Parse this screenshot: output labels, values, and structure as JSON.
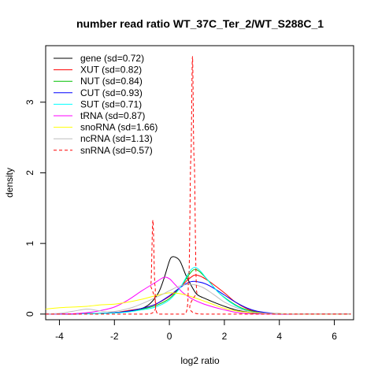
{
  "chart_data": {
    "type": "line",
    "title": "number read ratio WT_37C_Ter_2/WT_S288C_1",
    "xlabel": "log2 ratio",
    "ylabel": "density",
    "xlim": [
      -4.5,
      6.7
    ],
    "ylim": [
      -0.08,
      3.8
    ],
    "xticks": [
      "-4",
      "-2",
      "0",
      "2",
      "4",
      "6"
    ],
    "yticks": [
      "0",
      "1",
      "2",
      "3"
    ],
    "grid": false,
    "legend_position": "top-left",
    "series": [
      {
        "name": "gene (sd=0.72)",
        "color": "#000000",
        "dash": false,
        "x": [
          -4.5,
          -3,
          -2,
          -1.5,
          -1,
          -0.7,
          -0.4,
          -0.2,
          0,
          0.1,
          0.25,
          0.4,
          0.6,
          0.8,
          1,
          1.3,
          1.6,
          2,
          2.4,
          2.8,
          3.2,
          4,
          5,
          6.6
        ],
        "y": [
          0,
          0.005,
          0.02,
          0.04,
          0.08,
          0.15,
          0.3,
          0.5,
          0.75,
          0.81,
          0.8,
          0.74,
          0.55,
          0.4,
          0.28,
          0.22,
          0.17,
          0.11,
          0.06,
          0.03,
          0.01,
          0,
          0,
          0
        ]
      },
      {
        "name": "XUT (sd=0.82)",
        "color": "#ff0000",
        "dash": false,
        "x": [
          -4.5,
          -3,
          -2,
          -1.5,
          -1,
          -0.5,
          0,
          0.3,
          0.6,
          0.9,
          1.1,
          1.3,
          1.6,
          2,
          2.4,
          2.8,
          3.2,
          4,
          5,
          6.6
        ],
        "y": [
          0,
          0.005,
          0.02,
          0.05,
          0.08,
          0.14,
          0.25,
          0.34,
          0.46,
          0.55,
          0.54,
          0.5,
          0.42,
          0.3,
          0.17,
          0.08,
          0.03,
          0.005,
          0,
          0
        ]
      },
      {
        "name": "NUT (sd=0.84)",
        "color": "#00c000",
        "dash": false,
        "x": [
          -4.5,
          -3,
          -2,
          -1.5,
          -1,
          -0.5,
          0,
          0.4,
          0.7,
          0.9,
          1.1,
          1.4,
          1.8,
          2.2,
          2.6,
          3,
          3.4,
          4,
          5,
          6.6
        ],
        "y": [
          0,
          0.005,
          0.02,
          0.04,
          0.07,
          0.12,
          0.22,
          0.38,
          0.55,
          0.63,
          0.6,
          0.48,
          0.3,
          0.18,
          0.09,
          0.04,
          0.015,
          0.005,
          0,
          0
        ]
      },
      {
        "name": "CUT (sd=0.93)",
        "color": "#0000ff",
        "dash": false,
        "x": [
          -4.5,
          -3,
          -2,
          -1.5,
          -1,
          -0.5,
          0,
          0.3,
          0.6,
          0.8,
          1,
          1.3,
          1.6,
          2,
          2.4,
          2.8,
          3.2,
          4,
          5,
          6.6
        ],
        "y": [
          0,
          0.005,
          0.02,
          0.04,
          0.08,
          0.14,
          0.26,
          0.35,
          0.43,
          0.46,
          0.46,
          0.43,
          0.37,
          0.27,
          0.17,
          0.09,
          0.04,
          0.005,
          0,
          0
        ]
      },
      {
        "name": "SUT (sd=0.71)",
        "color": "#00ffff",
        "dash": false,
        "x": [
          -4.5,
          -3,
          -2,
          -1.5,
          -1,
          -0.5,
          0,
          0.4,
          0.7,
          0.9,
          1.1,
          1.4,
          1.8,
          2.2,
          2.6,
          3,
          3.4,
          4,
          5,
          6.6
        ],
        "y": [
          0,
          0.005,
          0.015,
          0.03,
          0.06,
          0.1,
          0.2,
          0.38,
          0.58,
          0.66,
          0.62,
          0.48,
          0.3,
          0.17,
          0.08,
          0.03,
          0.01,
          0.003,
          0,
          0
        ]
      },
      {
        "name": "tRNA (sd=0.87)",
        "color": "#ff00ff",
        "dash": false,
        "x": [
          -4.5,
          -3.5,
          -3,
          -2.5,
          -2,
          -1.5,
          -1,
          -0.5,
          -0.2,
          0,
          0.2,
          0.5,
          0.8,
          1.2,
          1.6,
          2,
          2.5,
          3,
          4,
          6.6
        ],
        "y": [
          0,
          0.005,
          0.02,
          0.05,
          0.1,
          0.2,
          0.33,
          0.45,
          0.52,
          0.5,
          0.42,
          0.3,
          0.22,
          0.15,
          0.1,
          0.06,
          0.02,
          0.005,
          0,
          0
        ]
      },
      {
        "name": "snoRNA (sd=1.66)",
        "color": "#ffff00",
        "dash": false,
        "x": [
          -4.5,
          -4,
          -3.5,
          -3,
          -2.5,
          -2,
          -1.5,
          -1,
          -0.5,
          0,
          0.5,
          1,
          1.5,
          2,
          2.5,
          3,
          3.5,
          4,
          5,
          6.6
        ],
        "y": [
          0.07,
          0.09,
          0.1,
          0.11,
          0.13,
          0.14,
          0.17,
          0.21,
          0.26,
          0.3,
          0.28,
          0.22,
          0.15,
          0.08,
          0.04,
          0.02,
          0.01,
          0.005,
          0,
          0
        ]
      },
      {
        "name": "ncRNA (sd=1.13)",
        "color": "#bebebe",
        "dash": false,
        "x": [
          -4.5,
          -4,
          -3.5,
          -3,
          -2.6,
          -2.2,
          -1.8,
          -1.3,
          -0.8,
          -0.3,
          0,
          0.4,
          0.8,
          1.2,
          1.6,
          2,
          2.5,
          3,
          4,
          6.6
        ],
        "y": [
          0,
          0.01,
          0.04,
          0.07,
          0.05,
          0.03,
          0.05,
          0.1,
          0.18,
          0.27,
          0.33,
          0.4,
          0.42,
          0.38,
          0.28,
          0.17,
          0.08,
          0.03,
          0.005,
          0
        ]
      },
      {
        "name": "snRNA (sd=0.57)",
        "color": "#ff0000",
        "dash": true,
        "x": [
          -4.5,
          -0.8,
          -0.68,
          -0.6,
          -0.52,
          -0.4,
          0.55,
          0.7,
          0.78,
          0.84,
          0.9,
          1.0,
          1.2,
          6.6
        ],
        "y": [
          0,
          0,
          0.4,
          1.33,
          0.4,
          0,
          0,
          0.5,
          2.2,
          3.65,
          2.2,
          0.3,
          0,
          0
        ]
      }
    ]
  }
}
